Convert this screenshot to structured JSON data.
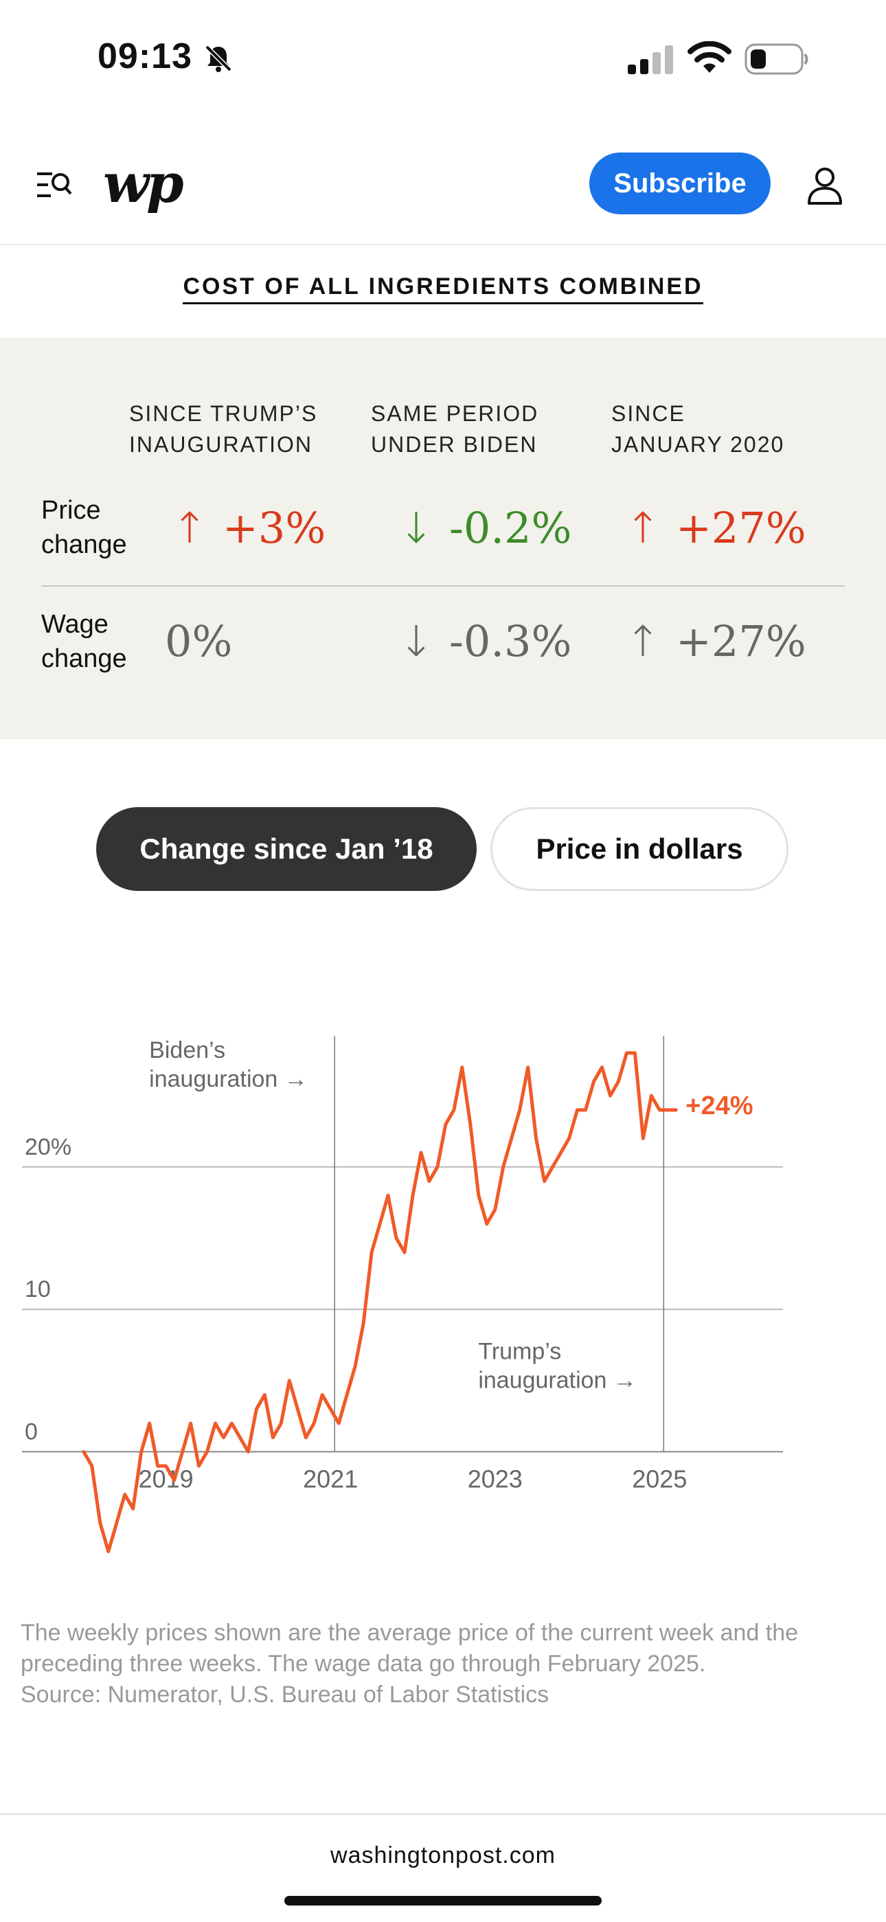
{
  "status_bar": {
    "time": "09:13",
    "icons": [
      "bell-slash-icon",
      "signal-icon",
      "wifi-icon",
      "battery-icon"
    ]
  },
  "nav": {
    "logo": "wp",
    "subscribe_label": "Subscribe",
    "icons": [
      "menu-search-icon",
      "account-icon"
    ]
  },
  "section_title": "COST OF ALL INGREDIENTS COMBINED",
  "stats": {
    "columns": [
      {
        "line1": "SINCE TRUMP’S",
        "line2": "INAUGURATION"
      },
      {
        "line1": "SAME PERIOD",
        "line2": "UNDER BIDEN"
      },
      {
        "line1": "SINCE",
        "line2": "JANUARY 2020"
      }
    ],
    "rows": [
      {
        "label_line1": "Price",
        "label_line2": "change",
        "values": [
          {
            "arrow": "↑",
            "text": "+3%"
          },
          {
            "arrow": "↓",
            "text": "-0.2%"
          },
          {
            "arrow": "↑",
            "text": "+27%"
          }
        ]
      },
      {
        "label_line1": "Wage",
        "label_line2": "change",
        "values": [
          {
            "arrow": "",
            "text": "0%"
          },
          {
            "arrow": "↓",
            "text": "-0.3%"
          },
          {
            "arrow": "↑",
            "text": "+27%"
          }
        ]
      }
    ],
    "colors": {
      "increase": "#d93a1c",
      "decrease": "#3c8c2b",
      "wage": "#666666"
    }
  },
  "toggle": {
    "active_label": "Change since Jan ’18",
    "inactive_label": "Price in dollars"
  },
  "chart_data": {
    "type": "line",
    "series": [
      {
        "name": "",
        "color": "#f05a28",
        "x": [
          2018.0,
          2018.1,
          2018.2,
          2018.3,
          2018.4,
          2018.5,
          2018.6,
          2018.7,
          2018.8,
          2018.9,
          2019.0,
          2019.1,
          2019.2,
          2019.3,
          2019.4,
          2019.5,
          2019.6,
          2019.7,
          2019.8,
          2019.9,
          2020.0,
          2020.1,
          2020.2,
          2020.3,
          2020.4,
          2020.5,
          2020.6,
          2020.7,
          2020.8,
          2020.9,
          2021.0,
          2021.1,
          2021.2,
          2021.3,
          2021.4,
          2021.5,
          2021.6,
          2021.7,
          2021.8,
          2021.9,
          2022.0,
          2022.1,
          2022.2,
          2022.3,
          2022.4,
          2022.5,
          2022.6,
          2022.7,
          2022.8,
          2022.9,
          2023.0,
          2023.1,
          2023.2,
          2023.3,
          2023.4,
          2023.5,
          2023.6,
          2023.7,
          2023.8,
          2023.9,
          2024.0,
          2024.1,
          2024.2,
          2024.3,
          2024.4,
          2024.5,
          2024.6,
          2024.7,
          2024.8,
          2024.9,
          2025.0,
          2025.1,
          2025.2
        ],
        "values": [
          0,
          -1,
          -5,
          -7,
          -5,
          -3,
          -4,
          0,
          2,
          -1,
          -1,
          -2,
          0,
          2,
          -1,
          0,
          2,
          1,
          2,
          1,
          0,
          3,
          4,
          1,
          2,
          5,
          3,
          1,
          2,
          4,
          3,
          2,
          4,
          6,
          9,
          14,
          16,
          18,
          15,
          14,
          18,
          21,
          19,
          20,
          23,
          24,
          27,
          23,
          18,
          16,
          17,
          20,
          22,
          24,
          27,
          22,
          19,
          20,
          21,
          22,
          24,
          24,
          26,
          27,
          25,
          26,
          28,
          28,
          22,
          25,
          24,
          24,
          24
        ],
        "note": "values approximated from the chart"
      }
    ],
    "end_label": "+24%",
    "y_ticks": [
      {
        "value": 0,
        "label": "0"
      },
      {
        "value": 10,
        "label": "10"
      },
      {
        "value": 20,
        "label": "20%"
      }
    ],
    "x_ticks": [
      {
        "value": 2019,
        "label": "2019"
      },
      {
        "value": 2021,
        "label": "2021"
      },
      {
        "value": 2023,
        "label": "2023"
      },
      {
        "value": 2025,
        "label": "2025"
      }
    ],
    "xlim": [
      2017.25,
      2026.5
    ],
    "ylim": [
      -9,
      32
    ],
    "events": [
      {
        "value": 2021.05,
        "label_line1": "Biden’s",
        "label_line2": "inauguration →"
      },
      {
        "value": 2025.05,
        "label_line1": "Trump’s",
        "label_line2": "inauguration →"
      }
    ],
    "grid": true
  },
  "footnote": {
    "line1": "The weekly prices shown are the average price of the current week and the",
    "line2": "preceding three weeks. The wage data go through February 2025.",
    "line3": "Source: Numerator, U.S. Bureau of Labor Statistics"
  },
  "bottom_bar": {
    "domain": "washingtonpost.com"
  }
}
